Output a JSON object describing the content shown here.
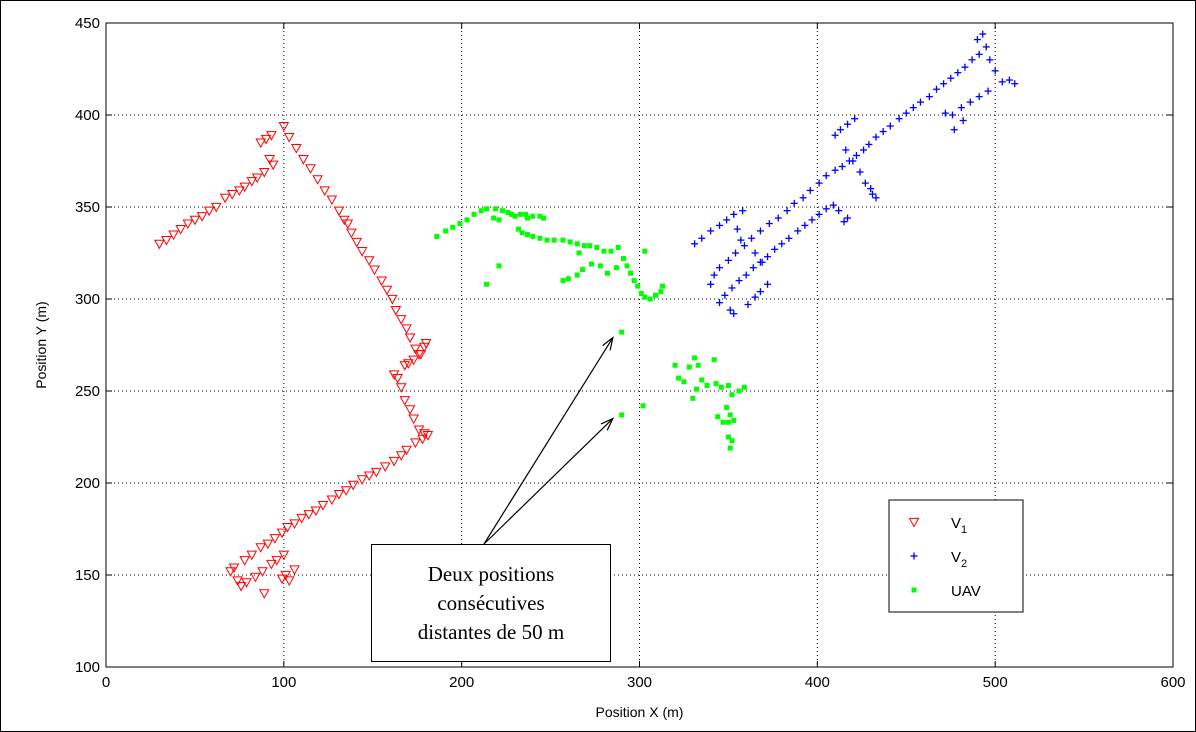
{
  "chart_data": {
    "type": "scatter",
    "xlabel": "Position X (m)",
    "ylabel": "Position Y (m)",
    "xlim": [
      0,
      600
    ],
    "ylim": [
      100,
      450
    ],
    "xticks": [
      0,
      100,
      200,
      300,
      400,
      500,
      600
    ],
    "yticks": [
      100,
      150,
      200,
      250,
      300,
      350,
      400,
      450
    ],
    "grid": true,
    "legend_position": "bottom-right",
    "series": [
      {
        "name": "V1",
        "name_main": "V",
        "name_sub": "1",
        "marker": "triangle-down",
        "color": "#ff0000",
        "points": [
          [
            30,
            330
          ],
          [
            34,
            332
          ],
          [
            38,
            335
          ],
          [
            42,
            338
          ],
          [
            46,
            341
          ],
          [
            50,
            343
          ],
          [
            54,
            345
          ],
          [
            58,
            348
          ],
          [
            62,
            350
          ],
          [
            67,
            355
          ],
          [
            71,
            357
          ],
          [
            75,
            359
          ],
          [
            78,
            361
          ],
          [
            82,
            364
          ],
          [
            85,
            366
          ],
          [
            89,
            369
          ],
          [
            87,
            385
          ],
          [
            90,
            387
          ],
          [
            93,
            389
          ],
          [
            92,
            376
          ],
          [
            94,
            373
          ],
          [
            100,
            394
          ],
          [
            103,
            388
          ],
          [
            107,
            382
          ],
          [
            111,
            376
          ],
          [
            115,
            371
          ],
          [
            119,
            365
          ],
          [
            123,
            359
          ],
          [
            127,
            354
          ],
          [
            131,
            348
          ],
          [
            134,
            343
          ],
          [
            136,
            341
          ],
          [
            138,
            336
          ],
          [
            141,
            331
          ],
          [
            144,
            326
          ],
          [
            148,
            321
          ],
          [
            151,
            316
          ],
          [
            155,
            310
          ],
          [
            158,
            305
          ],
          [
            161,
            300
          ],
          [
            163,
            294
          ],
          [
            166,
            289
          ],
          [
            169,
            284
          ],
          [
            171,
            279
          ],
          [
            174,
            273
          ],
          [
            177,
            270
          ],
          [
            179,
            274
          ],
          [
            180,
            276
          ],
          [
            176,
            270
          ],
          [
            173,
            267
          ],
          [
            170,
            265
          ],
          [
            168,
            264
          ],
          [
            162,
            259
          ],
          [
            164,
            257
          ],
          [
            166,
            252
          ],
          [
            168,
            245
          ],
          [
            171,
            240
          ],
          [
            173,
            235
          ],
          [
            176,
            229
          ],
          [
            179,
            227
          ],
          [
            181,
            226
          ],
          [
            178,
            224
          ],
          [
            174,
            222
          ],
          [
            169,
            218
          ],
          [
            166,
            215
          ],
          [
            162,
            212
          ],
          [
            157,
            209
          ],
          [
            152,
            206
          ],
          [
            148,
            204
          ],
          [
            144,
            202
          ],
          [
            139,
            199
          ],
          [
            135,
            196
          ],
          [
            131,
            194
          ],
          [
            127,
            191
          ],
          [
            122,
            188
          ],
          [
            118,
            185
          ],
          [
            114,
            183
          ],
          [
            110,
            181
          ],
          [
            106,
            178
          ],
          [
            102,
            176
          ],
          [
            99,
            173
          ],
          [
            95,
            170
          ],
          [
            91,
            167
          ],
          [
            87,
            165
          ],
          [
            82,
            161
          ],
          [
            78,
            158
          ],
          [
            72,
            154
          ],
          [
            70,
            152
          ],
          [
            74,
            147
          ],
          [
            76,
            144
          ],
          [
            79,
            146
          ],
          [
            84,
            149
          ],
          [
            88,
            152
          ],
          [
            89,
            140
          ],
          [
            93,
            156
          ],
          [
            96,
            158
          ],
          [
            99,
            148
          ],
          [
            101,
            150
          ],
          [
            103,
            147
          ],
          [
            100,
            161
          ],
          [
            106,
            153
          ]
        ]
      },
      {
        "name": "V2",
        "name_main": "V",
        "name_sub": "2",
        "marker": "plus",
        "color": "#0000ff",
        "points": [
          [
            331,
            330
          ],
          [
            335,
            333
          ],
          [
            340,
            337
          ],
          [
            345,
            340
          ],
          [
            349,
            343
          ],
          [
            353,
            346
          ],
          [
            358,
            348
          ],
          [
            355,
            338
          ],
          [
            357,
            332
          ],
          [
            340,
            308
          ],
          [
            342,
            313
          ],
          [
            345,
            317
          ],
          [
            350,
            321
          ],
          [
            354,
            325
          ],
          [
            359,
            329
          ],
          [
            363,
            333
          ],
          [
            368,
            337
          ],
          [
            373,
            341
          ],
          [
            378,
            344
          ],
          [
            383,
            348
          ],
          [
            387,
            352
          ],
          [
            392,
            355
          ],
          [
            396,
            359
          ],
          [
            401,
            363
          ],
          [
            405,
            367
          ],
          [
            410,
            370
          ],
          [
            414,
            372
          ],
          [
            418,
            375
          ],
          [
            422,
            378
          ],
          [
            426,
            381
          ],
          [
            429,
            384
          ],
          [
            433,
            388
          ],
          [
            437,
            391
          ],
          [
            441,
            394
          ],
          [
            446,
            398
          ],
          [
            450,
            401
          ],
          [
            454,
            404
          ],
          [
            458,
            407
          ],
          [
            463,
            410
          ],
          [
            467,
            414
          ],
          [
            471,
            417
          ],
          [
            475,
            420
          ],
          [
            479,
            423
          ],
          [
            483,
            426
          ],
          [
            487,
            430
          ],
          [
            491,
            433
          ],
          [
            495,
            437
          ],
          [
            490,
            441
          ],
          [
            493,
            444
          ],
          [
            497,
            430
          ],
          [
            500,
            424
          ],
          [
            504,
            418
          ],
          [
            508,
            419
          ],
          [
            511,
            417
          ],
          [
            496,
            413
          ],
          [
            491,
            410
          ],
          [
            486,
            407
          ],
          [
            481,
            404
          ],
          [
            476,
            400
          ],
          [
            472,
            401
          ],
          [
            482,
            397
          ],
          [
            477,
            392
          ],
          [
            410,
            389
          ],
          [
            413,
            392
          ],
          [
            417,
            395
          ],
          [
            421,
            398
          ],
          [
            416,
            381
          ],
          [
            420,
            375
          ],
          [
            424,
            369
          ],
          [
            427,
            363
          ],
          [
            430,
            360
          ],
          [
            431,
            357
          ],
          [
            433,
            355
          ],
          [
            409,
            351
          ],
          [
            412,
            348
          ],
          [
            405,
            349
          ],
          [
            401,
            346
          ],
          [
            397,
            343
          ],
          [
            393,
            340
          ],
          [
            389,
            337
          ],
          [
            384,
            333
          ],
          [
            380,
            330
          ],
          [
            376,
            327
          ],
          [
            372,
            323
          ],
          [
            368,
            320
          ],
          [
            364,
            317
          ],
          [
            360,
            313
          ],
          [
            356,
            310
          ],
          [
            352,
            306
          ],
          [
            348,
            302
          ],
          [
            345,
            298
          ],
          [
            351,
            294
          ],
          [
            353,
            292
          ],
          [
            361,
            297
          ],
          [
            365,
            301
          ],
          [
            368,
            304
          ],
          [
            372,
            308
          ],
          [
            369,
            320
          ],
          [
            365,
            325
          ],
          [
            415,
            342
          ],
          [
            417,
            344
          ]
        ]
      },
      {
        "name": "UAV",
        "marker": "dot",
        "color": "#00ff00",
        "points": [
          [
            186,
            334
          ],
          [
            191,
            337
          ],
          [
            195,
            339
          ],
          [
            199,
            341
          ],
          [
            203,
            343
          ],
          [
            207,
            346
          ],
          [
            211,
            348
          ],
          [
            214,
            349
          ],
          [
            219,
            349
          ],
          [
            223,
            348
          ],
          [
            226,
            347
          ],
          [
            228,
            346
          ],
          [
            218,
            344
          ],
          [
            221,
            343
          ],
          [
            230,
            345
          ],
          [
            233,
            346
          ],
          [
            236,
            346
          ],
          [
            240,
            345
          ],
          [
            244,
            345
          ],
          [
            246,
            344
          ],
          [
            232,
            338
          ],
          [
            234,
            336
          ],
          [
            237,
            335
          ],
          [
            240,
            334
          ],
          [
            237,
            344
          ],
          [
            244,
            333
          ],
          [
            248,
            332
          ],
          [
            252,
            332
          ],
          [
            257,
            332
          ],
          [
            261,
            331
          ],
          [
            265,
            330
          ],
          [
            269,
            329
          ],
          [
            272,
            329
          ],
          [
            276,
            328
          ],
          [
            280,
            326
          ],
          [
            284,
            326
          ],
          [
            288,
            328
          ],
          [
            291,
            322
          ],
          [
            293,
            318
          ],
          [
            295,
            314
          ],
          [
            297,
            310
          ],
          [
            299,
            307
          ],
          [
            301,
            303
          ],
          [
            303,
            301
          ],
          [
            306,
            300
          ],
          [
            309,
            302
          ],
          [
            312,
            304
          ],
          [
            313,
            307
          ],
          [
            303,
            326
          ],
          [
            287,
            317
          ],
          [
            278,
            318
          ],
          [
            273,
            319
          ],
          [
            268,
            316
          ],
          [
            265,
            313
          ],
          [
            260,
            311
          ],
          [
            257,
            310
          ],
          [
            266,
            325
          ],
          [
            282,
            314
          ],
          [
            214,
            308
          ],
          [
            221,
            318
          ],
          [
            290,
            282
          ],
          [
            290,
            237
          ],
          [
            302,
            242
          ],
          [
            320,
            264
          ],
          [
            322,
            257
          ],
          [
            325,
            255
          ],
          [
            328,
            263
          ],
          [
            331,
            268
          ],
          [
            333,
            264
          ],
          [
            335,
            256
          ],
          [
            338,
            253
          ],
          [
            343,
            254
          ],
          [
            346,
            252
          ],
          [
            350,
            253
          ],
          [
            352,
            248
          ],
          [
            356,
            250
          ],
          [
            359,
            252
          ],
          [
            342,
            267
          ],
          [
            344,
            236
          ],
          [
            347,
            233
          ],
          [
            350,
            233
          ],
          [
            353,
            234
          ],
          [
            349,
            241
          ],
          [
            351,
            237
          ],
          [
            350,
            225
          ],
          [
            352,
            223
          ],
          [
            351,
            219
          ],
          [
            332,
            251
          ],
          [
            330,
            246
          ]
        ]
      }
    ]
  },
  "annotation": {
    "lines": [
      "Deux positions",
      "consécutives",
      "distantes de 50 m"
    ],
    "arrow_targets": [
      [
        285,
        279
      ],
      [
        285,
        235
      ]
    ]
  }
}
